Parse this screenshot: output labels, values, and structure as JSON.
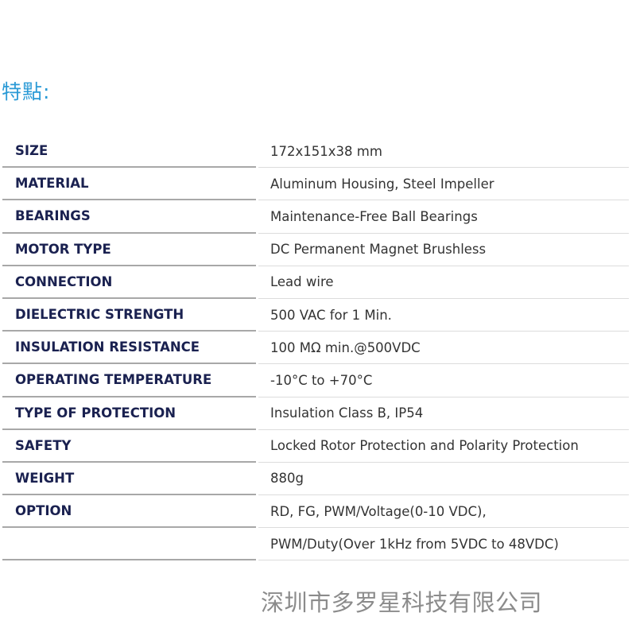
{
  "title": "特點:",
  "specs": [
    {
      "label": "SIZE",
      "value": "172x151x38 mm"
    },
    {
      "label": "MATERIAL",
      "value": "Aluminum Housing, Steel Impeller"
    },
    {
      "label": "BEARINGS",
      "value": "Maintenance-Free Ball Bearings"
    },
    {
      "label": "MOTOR TYPE",
      "value": "DC Permanent Magnet Brushless"
    },
    {
      "label": "CONNECTION",
      "value": "Lead wire"
    },
    {
      "label": "DIELECTRIC STRENGTH",
      "value": "500 VAC for 1 Min."
    },
    {
      "label": "INSULATION RESISTANCE",
      "value": "100 MΩ min.@500VDC"
    },
    {
      "label": "OPERATING TEMPERATURE",
      "value": "-10°C to +70°C"
    },
    {
      "label": "TYPE OF PROTECTION",
      "value": "Insulation Class B, IP54"
    },
    {
      "label": "SAFETY",
      "value": "Locked Rotor Protection and Polarity Protection"
    },
    {
      "label": "WEIGHT",
      "value": "880g"
    },
    {
      "label": "OPTION",
      "value": "RD, FG, PWM/Voltage(0-10 VDC),"
    },
    {
      "label": "",
      "value": "PWM/Duty(Over 1kHz from 5VDC to 48VDC)"
    }
  ],
  "watermark": "深圳市多罗星科技有限公司"
}
